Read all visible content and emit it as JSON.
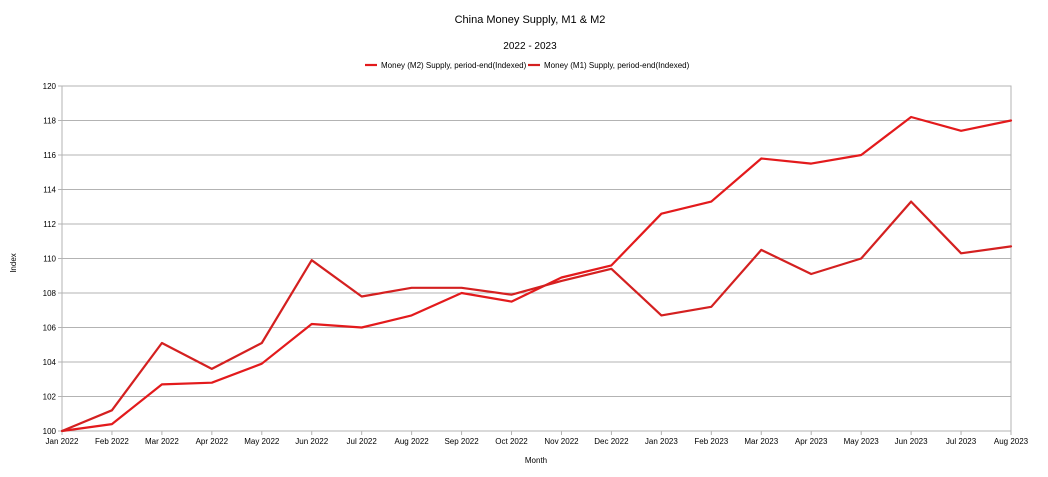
{
  "chart_data": {
    "type": "line",
    "title": "China Money Supply, M1 & M2",
    "subtitle": "2022 - 2023",
    "xlabel": "Month",
    "ylabel": "Index",
    "ylim": [
      100,
      120
    ],
    "yticks": [
      100,
      102,
      104,
      106,
      108,
      110,
      112,
      114,
      116,
      118,
      120
    ],
    "grid": true,
    "legend_position": "top",
    "categories": [
      "Jan 2022",
      "Feb 2022",
      "Mar 2022",
      "Apr 2022",
      "May 2022",
      "Jun 2022",
      "Jul 2022",
      "Aug 2022",
      "Sep 2022",
      "Oct 2022",
      "Nov 2022",
      "Dec 2022",
      "Jan 2023",
      "Feb 2023",
      "Mar 2023",
      "Apr 2023",
      "May 2023",
      "Jun 2023",
      "Jul 2023",
      "Aug 2023"
    ],
    "series": [
      {
        "name": "Money (M2) Supply, period-end(Indexed)",
        "color": "#e31a1c",
        "values": [
          100,
          100.4,
          102.7,
          102.8,
          103.9,
          106.2,
          106.0,
          106.7,
          108.0,
          107.5,
          108.9,
          109.6,
          112.6,
          113.3,
          115.8,
          115.5,
          116.0,
          118.2,
          117.4,
          118.0
        ]
      },
      {
        "name": "Money (M1) Supply, period-end(Indexed)",
        "color": "#d42020",
        "values": [
          100,
          101.2,
          105.1,
          103.6,
          105.1,
          109.9,
          107.8,
          108.3,
          108.3,
          107.9,
          108.7,
          109.4,
          106.7,
          107.2,
          110.5,
          109.1,
          110.0,
          113.3,
          110.3,
          110.7
        ]
      }
    ]
  }
}
